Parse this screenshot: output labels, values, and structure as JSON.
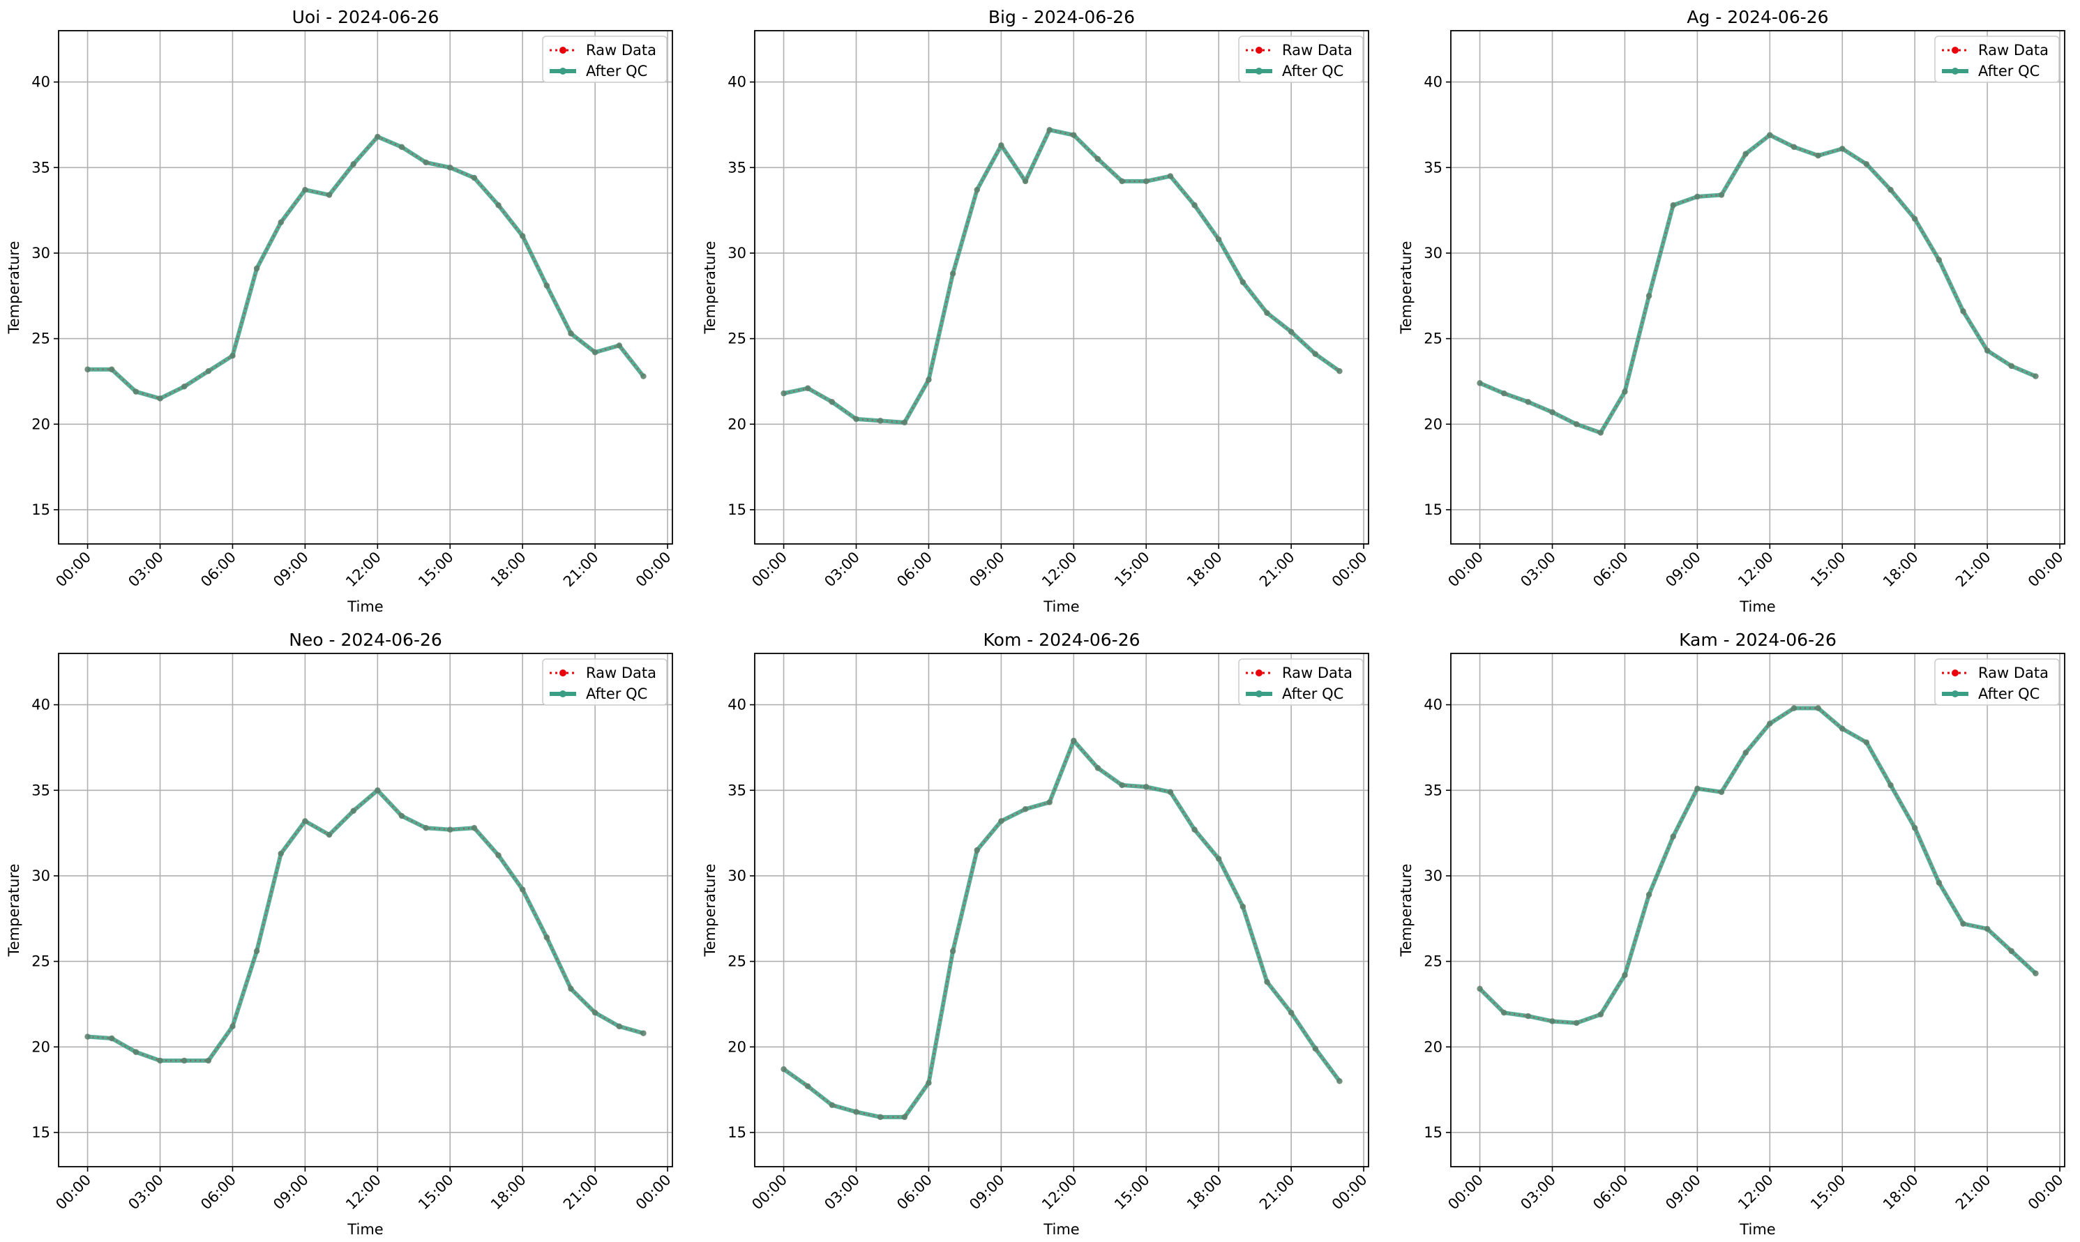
{
  "colors": {
    "raw": "#e8000b",
    "qc": "#3a9e84",
    "grid": "#b0b0b0",
    "axis": "#000000"
  },
  "chart_data": [
    {
      "type": "line",
      "title": "Uoi - 2024-06-26",
      "xlabel": "Time",
      "ylabel": "Temperature",
      "xticks": [
        "00:00",
        "03:00",
        "06:00",
        "09:00",
        "12:00",
        "15:00",
        "18:00",
        "21:00",
        "00:00"
      ],
      "yticks": [
        15,
        20,
        25,
        30,
        35,
        40
      ],
      "xlim": [
        -1.2,
        24.2
      ],
      "ylim": [
        13,
        43
      ],
      "grid": true,
      "legend": "top-right",
      "x": [
        0,
        1,
        2,
        3,
        4,
        5,
        6,
        7,
        8,
        9,
        10,
        11,
        12,
        13,
        14,
        15,
        16,
        17,
        18,
        19,
        20,
        21,
        22,
        23
      ],
      "series": [
        {
          "name": "Raw Data",
          "style": "dotted",
          "values": [
            23.2,
            23.2,
            21.9,
            21.5,
            22.2,
            23.1,
            24.0,
            29.1,
            31.8,
            33.7,
            33.4,
            35.2,
            36.8,
            36.2,
            35.3,
            35.0,
            34.4,
            32.8,
            31.0,
            28.1,
            25.3,
            24.2,
            24.6,
            22.8
          ]
        },
        {
          "name": "After QC",
          "style": "solid",
          "values": [
            23.2,
            23.2,
            21.9,
            21.5,
            22.2,
            23.1,
            24.0,
            29.1,
            31.8,
            33.7,
            33.4,
            35.2,
            36.8,
            36.2,
            35.3,
            35.0,
            34.4,
            32.8,
            31.0,
            28.1,
            25.3,
            24.2,
            24.6,
            22.8
          ]
        }
      ]
    },
    {
      "type": "line",
      "title": "Big - 2024-06-26",
      "xlabel": "Time",
      "ylabel": "Temperature",
      "xticks": [
        "00:00",
        "03:00",
        "06:00",
        "09:00",
        "12:00",
        "15:00",
        "18:00",
        "21:00",
        "00:00"
      ],
      "yticks": [
        15,
        20,
        25,
        30,
        35,
        40
      ],
      "xlim": [
        -1.2,
        24.2
      ],
      "ylim": [
        13,
        43
      ],
      "grid": true,
      "legend": "top-right",
      "x": [
        0,
        1,
        2,
        3,
        4,
        5,
        6,
        7,
        8,
        9,
        10,
        11,
        12,
        13,
        14,
        15,
        16,
        17,
        18,
        19,
        20,
        21,
        22,
        23
      ],
      "series": [
        {
          "name": "Raw Data",
          "style": "dotted",
          "values": [
            21.8,
            22.1,
            21.3,
            20.3,
            20.2,
            20.1,
            22.6,
            28.8,
            33.7,
            36.3,
            34.2,
            37.2,
            36.9,
            35.5,
            34.2,
            34.2,
            34.5,
            32.8,
            30.8,
            28.3,
            26.5,
            25.4,
            24.1,
            23.1
          ]
        },
        {
          "name": "After QC",
          "style": "solid",
          "values": [
            21.8,
            22.1,
            21.3,
            20.3,
            20.2,
            20.1,
            22.6,
            28.8,
            33.7,
            36.3,
            34.2,
            37.2,
            36.9,
            35.5,
            34.2,
            34.2,
            34.5,
            32.8,
            30.8,
            28.3,
            26.5,
            25.4,
            24.1,
            23.1
          ]
        }
      ]
    },
    {
      "type": "line",
      "title": "Ag - 2024-06-26",
      "xlabel": "Time",
      "ylabel": "Temperature",
      "xticks": [
        "00:00",
        "03:00",
        "06:00",
        "09:00",
        "12:00",
        "15:00",
        "18:00",
        "21:00",
        "00:00"
      ],
      "yticks": [
        15,
        20,
        25,
        30,
        35,
        40
      ],
      "xlim": [
        -1.2,
        24.2
      ],
      "ylim": [
        13,
        43
      ],
      "grid": true,
      "legend": "top-right",
      "x": [
        0,
        1,
        2,
        3,
        4,
        5,
        6,
        7,
        8,
        9,
        10,
        11,
        12,
        13,
        14,
        15,
        16,
        17,
        18,
        19,
        20,
        21,
        22,
        23
      ],
      "series": [
        {
          "name": "Raw Data",
          "style": "dotted",
          "values": [
            22.4,
            21.8,
            21.3,
            20.7,
            20.0,
            19.5,
            21.9,
            27.5,
            32.8,
            33.3,
            33.4,
            35.8,
            36.9,
            36.2,
            35.7,
            36.1,
            35.2,
            33.7,
            32.0,
            29.6,
            26.6,
            24.3,
            23.4,
            22.8
          ]
        },
        {
          "name": "After QC",
          "style": "solid",
          "values": [
            22.4,
            21.8,
            21.3,
            20.7,
            20.0,
            19.5,
            21.9,
            27.5,
            32.8,
            33.3,
            33.4,
            35.8,
            36.9,
            36.2,
            35.7,
            36.1,
            35.2,
            33.7,
            32.0,
            29.6,
            26.6,
            24.3,
            23.4,
            22.8
          ]
        }
      ]
    },
    {
      "type": "line",
      "title": "Neo - 2024-06-26",
      "xlabel": "Time",
      "ylabel": "Temperature",
      "xticks": [
        "00:00",
        "03:00",
        "06:00",
        "09:00",
        "12:00",
        "15:00",
        "18:00",
        "21:00",
        "00:00"
      ],
      "yticks": [
        15,
        20,
        25,
        30,
        35,
        40
      ],
      "xlim": [
        -1.2,
        24.2
      ],
      "ylim": [
        13,
        43
      ],
      "grid": true,
      "legend": "top-right",
      "x": [
        0,
        1,
        2,
        3,
        4,
        5,
        6,
        7,
        8,
        9,
        10,
        11,
        12,
        13,
        14,
        15,
        16,
        17,
        18,
        19,
        20,
        21,
        22,
        23
      ],
      "series": [
        {
          "name": "Raw Data",
          "style": "dotted",
          "values": [
            20.6,
            20.5,
            19.7,
            19.2,
            19.2,
            19.2,
            21.2,
            25.6,
            31.3,
            33.2,
            32.4,
            33.8,
            35.0,
            33.5,
            32.8,
            32.7,
            32.8,
            31.2,
            29.2,
            26.4,
            23.4,
            22.0,
            21.2,
            20.8
          ]
        },
        {
          "name": "After QC",
          "style": "solid",
          "values": [
            20.6,
            20.5,
            19.7,
            19.2,
            19.2,
            19.2,
            21.2,
            25.6,
            31.3,
            33.2,
            32.4,
            33.8,
            35.0,
            33.5,
            32.8,
            32.7,
            32.8,
            31.2,
            29.2,
            26.4,
            23.4,
            22.0,
            21.2,
            20.8
          ]
        }
      ]
    },
    {
      "type": "line",
      "title": "Kom - 2024-06-26",
      "xlabel": "Time",
      "ylabel": "Temperature",
      "xticks": [
        "00:00",
        "03:00",
        "06:00",
        "09:00",
        "12:00",
        "15:00",
        "18:00",
        "21:00",
        "00:00"
      ],
      "yticks": [
        15,
        20,
        25,
        30,
        35,
        40
      ],
      "xlim": [
        -1.2,
        24.2
      ],
      "ylim": [
        13,
        43
      ],
      "grid": true,
      "legend": "top-right",
      "x": [
        0,
        1,
        2,
        3,
        4,
        5,
        6,
        7,
        8,
        9,
        10,
        11,
        12,
        13,
        14,
        15,
        16,
        17,
        18,
        19,
        20,
        21,
        22,
        23
      ],
      "series": [
        {
          "name": "Raw Data",
          "style": "dotted",
          "values": [
            18.7,
            17.7,
            16.6,
            16.2,
            15.9,
            15.9,
            17.9,
            25.6,
            31.5,
            33.2,
            33.9,
            34.3,
            37.9,
            36.3,
            35.3,
            35.2,
            34.9,
            32.7,
            31.0,
            28.2,
            23.8,
            22.0,
            19.9,
            18.0
          ]
        },
        {
          "name": "After QC",
          "style": "solid",
          "values": [
            18.7,
            17.7,
            16.6,
            16.2,
            15.9,
            15.9,
            17.9,
            25.6,
            31.5,
            33.2,
            33.9,
            34.3,
            37.9,
            36.3,
            35.3,
            35.2,
            34.9,
            32.7,
            31.0,
            28.2,
            23.8,
            22.0,
            19.9,
            18.0
          ]
        }
      ]
    },
    {
      "type": "line",
      "title": "Kam - 2024-06-26",
      "xlabel": "Time",
      "ylabel": "Temperature",
      "xticks": [
        "00:00",
        "03:00",
        "06:00",
        "09:00",
        "12:00",
        "15:00",
        "18:00",
        "21:00",
        "00:00"
      ],
      "yticks": [
        15,
        20,
        25,
        30,
        35,
        40
      ],
      "xlim": [
        -1.2,
        24.2
      ],
      "ylim": [
        13,
        43
      ],
      "grid": true,
      "legend": "top-right",
      "x": [
        0,
        1,
        2,
        3,
        4,
        5,
        6,
        7,
        8,
        9,
        10,
        11,
        12,
        13,
        14,
        15,
        16,
        17,
        18,
        19,
        20,
        21,
        22,
        23
      ],
      "series": [
        {
          "name": "Raw Data",
          "style": "dotted",
          "values": [
            23.4,
            22.0,
            21.8,
            21.5,
            21.4,
            21.9,
            24.2,
            28.9,
            32.3,
            35.1,
            34.9,
            37.2,
            38.9,
            39.8,
            39.8,
            38.6,
            37.8,
            35.3,
            32.8,
            29.6,
            27.2,
            26.9,
            25.6,
            24.3
          ]
        },
        {
          "name": "After QC",
          "style": "solid",
          "values": [
            23.4,
            22.0,
            21.8,
            21.5,
            21.4,
            21.9,
            24.2,
            28.9,
            32.3,
            35.1,
            34.9,
            37.2,
            38.9,
            39.8,
            39.8,
            38.6,
            37.8,
            35.3,
            32.8,
            29.6,
            27.2,
            26.9,
            25.6,
            24.3
          ]
        }
      ]
    }
  ]
}
